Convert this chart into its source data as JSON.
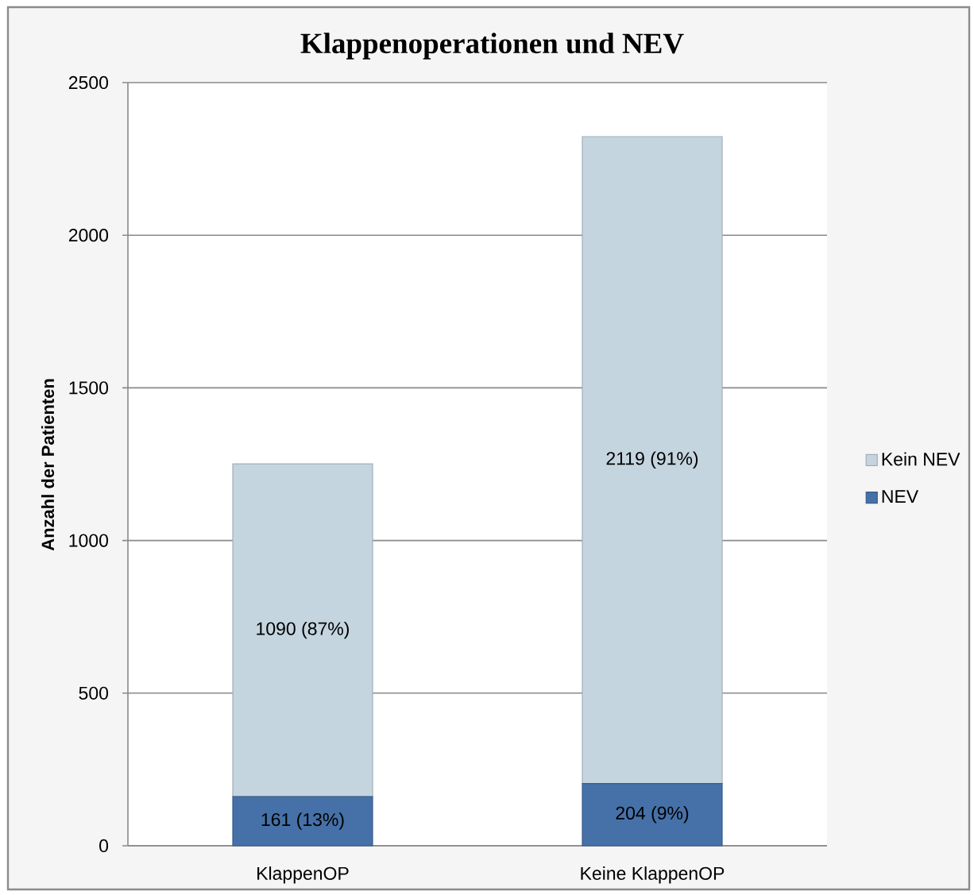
{
  "chart_data": {
    "type": "bar",
    "title": "Klappenoperationen und NEV",
    "ylabel": "Anzahl der Patienten",
    "categories": [
      "KlappenOP",
      "Keine KlappenOP"
    ],
    "stacked": true,
    "series": [
      {
        "name": "NEV",
        "color": "#4571A8",
        "values": [
          161,
          204
        ],
        "value_labels": [
          "161 (13%)",
          "204 (9%)"
        ]
      },
      {
        "name": "Kein NEV",
        "color": "#C5D5E0",
        "values": [
          1090,
          2119
        ],
        "value_labels": [
          "1090 (87%)",
          "2119 (91%)"
        ]
      }
    ],
    "ylim": [
      0,
      2500
    ],
    "yticks": [
      0,
      500,
      1000,
      1500,
      2000,
      2500
    ],
    "grid": "y",
    "legend": "right"
  }
}
